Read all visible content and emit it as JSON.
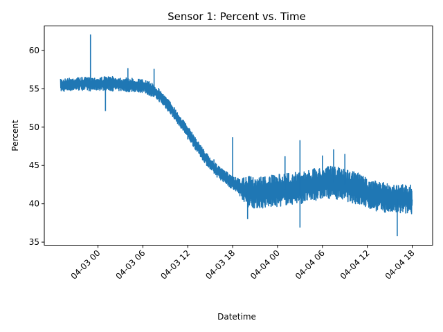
{
  "chart_data": {
    "type": "line",
    "title": "Sensor 1: Percent vs. Time",
    "xlabel": "Datetime",
    "ylabel": "Percent",
    "x_range": [
      "2024-04-02 19:00",
      "2024-04-04 18:00"
    ],
    "ylim": [
      34.6,
      63.2
    ],
    "x_ticks": [
      {
        "value": "2024-04-03 00:00",
        "label": "04-03 00"
      },
      {
        "value": "2024-04-03 06:00",
        "label": "04-03 06"
      },
      {
        "value": "2024-04-03 12:00",
        "label": "04-03 12"
      },
      {
        "value": "2024-04-03 18:00",
        "label": "04-03 18"
      },
      {
        "value": "2024-04-04 00:00",
        "label": "04-04 00"
      },
      {
        "value": "2024-04-04 06:00",
        "label": "04-04 06"
      },
      {
        "value": "2024-04-04 12:00",
        "label": "04-04 12"
      },
      {
        "value": "2024-04-04 18:00",
        "label": "04-04 18"
      }
    ],
    "y_ticks": [
      35,
      40,
      45,
      50,
      55,
      60
    ],
    "grid": false,
    "color": "#1f77b4",
    "series": [
      {
        "x": [
          "2024-04-02 19:00",
          "2024-04-02 20:00",
          "2024-04-02 21:00",
          "2024-04-02 22:00",
          "2024-04-02 23:00",
          "2024-04-03 00:00",
          "2024-04-03 01:00",
          "2024-04-03 02:00",
          "2024-04-03 03:00",
          "2024-04-03 04:00",
          "2024-04-03 05:00",
          "2024-04-03 06:00",
          "2024-04-03 07:00",
          "2024-04-03 08:00",
          "2024-04-03 09:00",
          "2024-04-03 10:00",
          "2024-04-03 11:00",
          "2024-04-03 12:00",
          "2024-04-03 13:00",
          "2024-04-03 14:00",
          "2024-04-03 15:00",
          "2024-04-03 16:00",
          "2024-04-03 17:00",
          "2024-04-03 18:00",
          "2024-04-03 19:00",
          "2024-04-03 20:00",
          "2024-04-03 21:00",
          "2024-04-03 22:00",
          "2024-04-03 23:00",
          "2024-04-04 00:00",
          "2024-04-04 01:00",
          "2024-04-04 02:00",
          "2024-04-04 03:00",
          "2024-04-04 04:00",
          "2024-04-04 05:00",
          "2024-04-04 06:00",
          "2024-04-04 07:00",
          "2024-04-04 08:00",
          "2024-04-04 09:00",
          "2024-04-04 10:00",
          "2024-04-04 11:00",
          "2024-04-04 12:00",
          "2024-04-04 13:00",
          "2024-04-04 14:00",
          "2024-04-04 15:00",
          "2024-04-04 16:00",
          "2024-04-04 17:00",
          "2024-04-04 18:00"
        ],
        "low": [
          54.6,
          54.7,
          54.8,
          54.8,
          54.7,
          54.8,
          54.8,
          54.7,
          54.7,
          54.6,
          54.6,
          54.5,
          54.1,
          53.5,
          52.5,
          51.3,
          50.0,
          48.6,
          47.1,
          45.7,
          44.4,
          43.4,
          42.7,
          41.8,
          41.0,
          39.6,
          39.4,
          39.4,
          39.5,
          39.6,
          39.8,
          39.9,
          40.0,
          40.2,
          40.4,
          40.6,
          40.7,
          40.6,
          40.4,
          40.1,
          39.8,
          39.4,
          39.1,
          38.9,
          38.8,
          38.7,
          38.7,
          38.6
        ],
        "high": [
          56.3,
          56.4,
          56.5,
          56.5,
          56.5,
          56.5,
          56.6,
          56.6,
          56.5,
          56.4,
          56.4,
          56.2,
          55.9,
          55.2,
          54.1,
          52.9,
          51.5,
          50.1,
          48.7,
          47.3,
          46.0,
          45.0,
          44.3,
          43.6,
          43.2,
          43.6,
          43.5,
          43.6,
          43.7,
          43.8,
          44.0,
          44.1,
          44.2,
          44.4,
          44.6,
          44.8,
          44.9,
          44.8,
          44.6,
          44.3,
          44.0,
          43.3,
          43.0,
          42.8,
          42.7,
          42.6,
          42.6,
          42.5
        ],
        "spikes": [
          {
            "x": "2024-04-02 23:00",
            "y": 62.1
          },
          {
            "x": "2024-04-03 01:00",
            "y": 52.1
          },
          {
            "x": "2024-04-03 04:00",
            "y": 57.7
          },
          {
            "x": "2024-04-03 07:30",
            "y": 57.6
          },
          {
            "x": "2024-04-03 12:00",
            "y": 48.4
          },
          {
            "x": "2024-04-03 15:30",
            "y": 45.8
          },
          {
            "x": "2024-04-03 18:00",
            "y": 48.7
          },
          {
            "x": "2024-04-03 20:00",
            "y": 38.0
          },
          {
            "x": "2024-04-04 01:00",
            "y": 46.2
          },
          {
            "x": "2024-04-04 03:00",
            "y": 48.3
          },
          {
            "x": "2024-04-04 03:00",
            "y": 36.9
          },
          {
            "x": "2024-04-04 06:00",
            "y": 46.3
          },
          {
            "x": "2024-04-04 07:30",
            "y": 47.1
          },
          {
            "x": "2024-04-04 09:00",
            "y": 46.5
          },
          {
            "x": "2024-04-04 16:00",
            "y": 35.8
          }
        ]
      }
    ]
  }
}
